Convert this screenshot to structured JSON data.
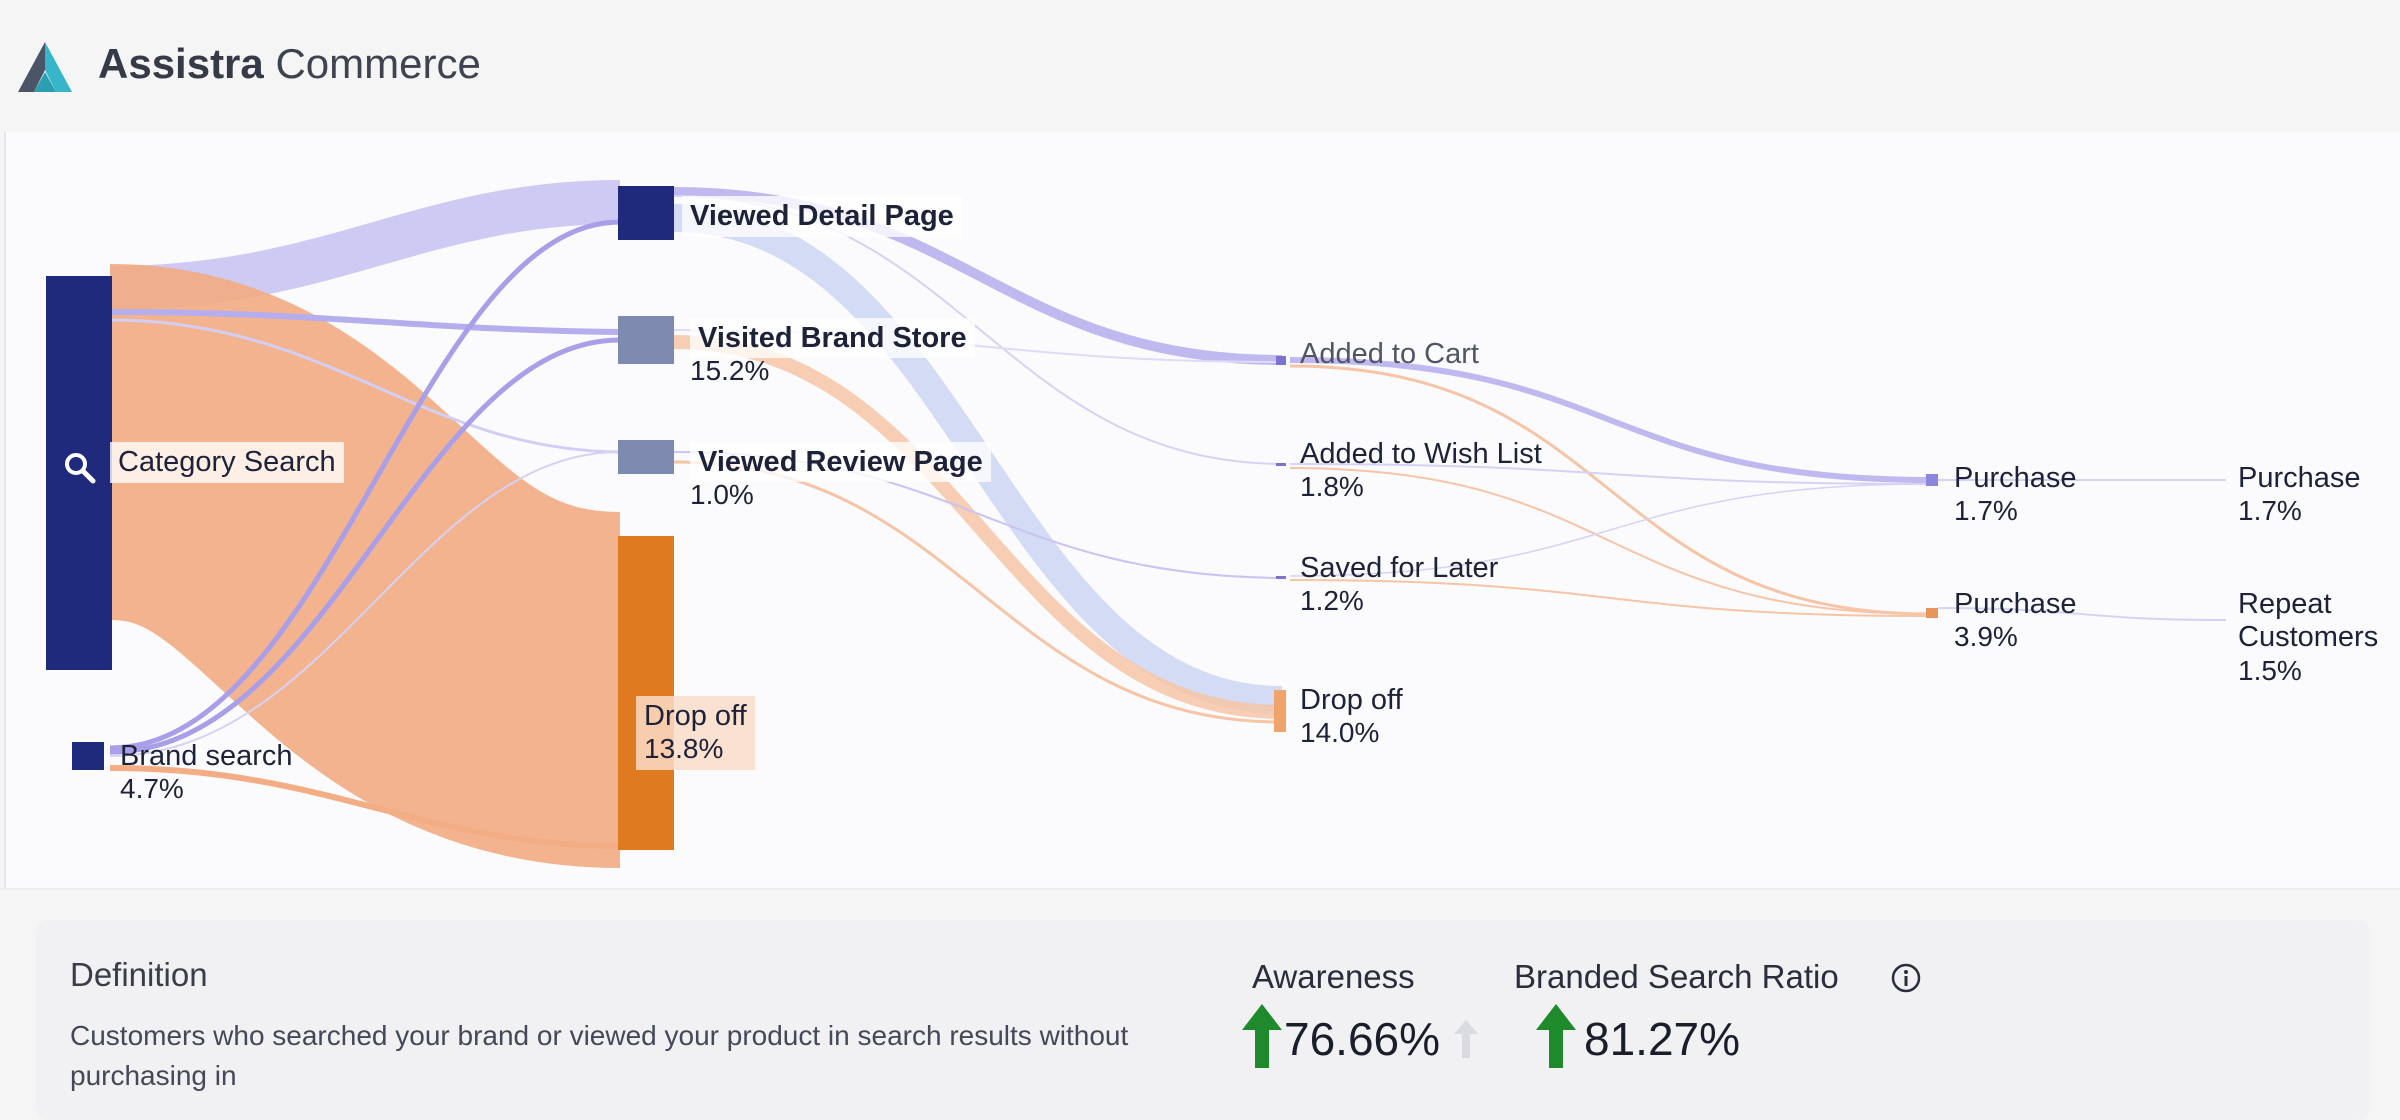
{
  "app": {
    "brand_bold": "Assistra",
    "brand_rest": "Commerce"
  },
  "sankey": {
    "nodes": {
      "category_search": {
        "label": "Category Search"
      },
      "brand_search": {
        "label": "Brand search",
        "value": "4.7%"
      },
      "viewed_detail": {
        "label": "Viewed Detail Page"
      },
      "visited_brand_store": {
        "label": "Visited Brand Store",
        "value": "15.2%"
      },
      "viewed_review": {
        "label": "Viewed Review Page",
        "value": "1.0%"
      },
      "drop_off_1": {
        "label": "Drop off",
        "value": "13.8%"
      },
      "added_to_cart": {
        "label": "Added to Cart"
      },
      "added_to_wish": {
        "label": "Added to Wish List",
        "value": "1.8%"
      },
      "saved_later": {
        "label": "Saved for Later",
        "value": "1.2%"
      },
      "drop_off_2": {
        "label": "Drop off",
        "value": "14.0%"
      },
      "purchase_a": {
        "label": "Purchase",
        "value": "1.7%"
      },
      "purchase_b": {
        "label": "Purchase",
        "value": "3.9%"
      },
      "purchase_final": {
        "label": "Purchase",
        "value": "1.7%"
      },
      "repeat_customers": {
        "label": "Repeat Customers",
        "value": "1.5%"
      }
    },
    "colors": {
      "navy": "#1f2a7c",
      "slate": "#7f8ab0",
      "orange": "#e07a1f",
      "lavender": "#c9c4f2",
      "peach": "#f2ad84"
    }
  },
  "definition": {
    "title": "Definition",
    "text": "Customers who searched your brand or viewed your product in search results without purchasing in"
  },
  "metrics": {
    "awareness": {
      "label": "Awareness",
      "value": "76.66%",
      "trend": "up"
    },
    "branded_search_ratio": {
      "label": "Branded Search Ratio",
      "value": "81.27%",
      "trend": "up",
      "info_icon": "info-icon"
    }
  }
}
